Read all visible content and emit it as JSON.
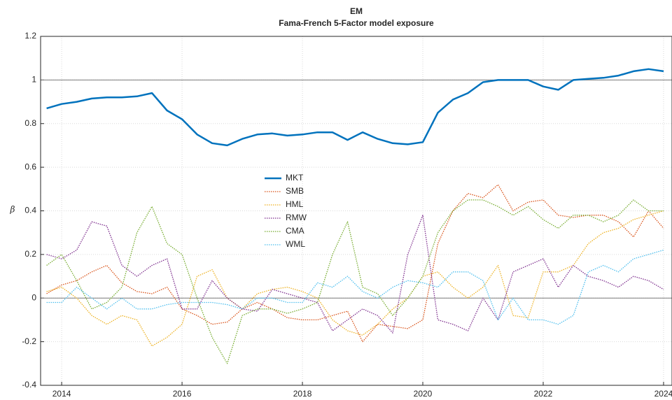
{
  "chart_data": {
    "type": "line",
    "title": "EM",
    "subtitle": "Fama-French 5-Factor model exposure",
    "y_label": "β",
    "x": [
      2013.75,
      2014,
      2014.25,
      2014.5,
      2014.75,
      2015,
      2015.25,
      2015.5,
      2015.75,
      2016,
      2016.25,
      2016.5,
      2016.75,
      2017,
      2017.25,
      2017.5,
      2017.75,
      2018,
      2018.25,
      2018.5,
      2018.75,
      2019,
      2019.25,
      2019.5,
      2019.75,
      2020,
      2020.25,
      2020.5,
      2020.75,
      2021,
      2021.25,
      2021.5,
      2021.75,
      2022,
      2022.25,
      2022.5,
      2022.75,
      2023,
      2023.25,
      2023.5,
      2023.75,
      2024
    ],
    "xlim": [
      2013.65,
      2024.14
    ],
    "xticks": [
      2014,
      2016,
      2018,
      2020,
      2022,
      2024
    ],
    "ylim": [
      -0.4,
      1.2
    ],
    "yticks": [
      -0.4,
      -0.2,
      0,
      0.2,
      0.4,
      0.6,
      0.8,
      1,
      1.2
    ],
    "reference_lines": [
      0,
      1
    ],
    "grid": true,
    "series": [
      {
        "name": "MKT",
        "color": "#0072BD",
        "line_style": "solid",
        "values": [
          0.87,
          0.89,
          0.9,
          0.915,
          0.92,
          0.92,
          0.925,
          0.94,
          0.86,
          0.82,
          0.75,
          0.71,
          0.7,
          0.73,
          0.75,
          0.755,
          0.745,
          0.75,
          0.76,
          0.76,
          0.725,
          0.76,
          0.73,
          0.71,
          0.705,
          0.715,
          0.85,
          0.91,
          0.94,
          0.99,
          1.0,
          1.0,
          1.0,
          0.97,
          0.955,
          1.0,
          1.005,
          1.01,
          1.02,
          1.04,
          1.05,
          1.04
        ]
      },
      {
        "name": "SMB",
        "color": "#D95319",
        "line_style": "dotted",
        "values": [
          0.02,
          0.06,
          0.08,
          0.12,
          0.15,
          0.07,
          0.03,
          0.02,
          0.05,
          -0.05,
          -0.08,
          -0.12,
          -0.11,
          -0.05,
          -0.02,
          -0.05,
          -0.09,
          -0.1,
          -0.1,
          -0.08,
          -0.06,
          -0.2,
          -0.12,
          -0.13,
          -0.14,
          -0.1,
          0.25,
          0.4,
          0.48,
          0.46,
          0.52,
          0.4,
          0.44,
          0.45,
          0.38,
          0.37,
          0.38,
          0.38,
          0.35,
          0.28,
          0.4,
          0.32
        ]
      },
      {
        "name": "HML",
        "color": "#EDB120",
        "line_style": "dotted",
        "values": [
          0.03,
          0.05,
          0.0,
          -0.08,
          -0.12,
          -0.08,
          -0.1,
          -0.22,
          -0.18,
          -0.12,
          0.1,
          0.13,
          0.0,
          -0.05,
          0.02,
          0.04,
          0.05,
          0.03,
          0.0,
          -0.1,
          -0.15,
          -0.17,
          -0.12,
          -0.05,
          0.0,
          0.1,
          0.12,
          0.05,
          0.0,
          0.05,
          0.15,
          -0.08,
          -0.09,
          0.12,
          0.12,
          0.15,
          0.25,
          0.3,
          0.32,
          0.36,
          0.38,
          0.4
        ]
      },
      {
        "name": "RMW",
        "color": "#7E2F8E",
        "line_style": "dotted",
        "values": [
          0.2,
          0.18,
          0.22,
          0.35,
          0.33,
          0.15,
          0.1,
          0.15,
          0.18,
          -0.05,
          -0.05,
          0.08,
          0.0,
          -0.05,
          -0.06,
          0.04,
          0.02,
          0.0,
          -0.02,
          -0.15,
          -0.1,
          -0.05,
          -0.08,
          -0.16,
          0.2,
          0.38,
          -0.1,
          -0.12,
          -0.15,
          0.0,
          -0.1,
          0.12,
          0.15,
          0.18,
          0.05,
          0.15,
          0.1,
          0.08,
          0.05,
          0.1,
          0.08,
          0.04
        ]
      },
      {
        "name": "CMA",
        "color": "#77AC30",
        "line_style": "dotted",
        "values": [
          0.15,
          0.2,
          0.08,
          -0.05,
          -0.02,
          0.05,
          0.3,
          0.42,
          0.25,
          0.2,
          0.0,
          -0.18,
          -0.3,
          -0.08,
          -0.05,
          -0.05,
          -0.07,
          -0.05,
          -0.02,
          0.2,
          0.35,
          0.05,
          0.02,
          -0.08,
          0.0,
          0.1,
          0.3,
          0.4,
          0.45,
          0.45,
          0.42,
          0.38,
          0.42,
          0.36,
          0.32,
          0.38,
          0.38,
          0.35,
          0.38,
          0.45,
          0.4,
          0.4
        ]
      },
      {
        "name": "WML",
        "color": "#4DBEEE",
        "line_style": "dotted",
        "values": [
          -0.02,
          -0.02,
          0.05,
          0.0,
          -0.05,
          0.0,
          -0.05,
          -0.05,
          -0.03,
          -0.02,
          -0.02,
          -0.02,
          -0.03,
          -0.05,
          0.0,
          0.0,
          -0.02,
          -0.02,
          0.07,
          0.05,
          0.1,
          0.03,
          0.0,
          0.05,
          0.08,
          0.07,
          0.05,
          0.12,
          0.12,
          0.08,
          -0.1,
          0.0,
          -0.1,
          -0.1,
          -0.12,
          -0.08,
          0.12,
          0.15,
          0.12,
          0.18,
          0.2,
          0.22
        ]
      }
    ]
  }
}
